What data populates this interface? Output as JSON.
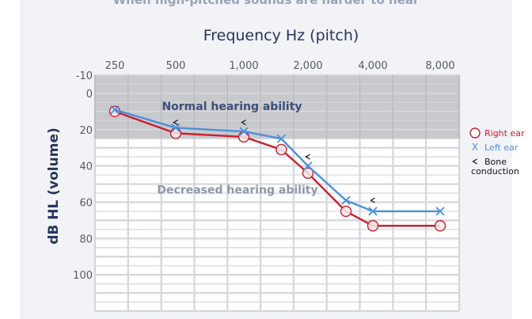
{
  "header": {
    "subtitle": "When high-pitched sounds are harder to hear"
  },
  "chart_data": {
    "type": "line",
    "title": "Frequency Hz (pitch)",
    "ylabel": "dB HL  (volume)",
    "x_ticks": [
      "250",
      "500",
      "1,000",
      "2,000",
      "4,000",
      "8,000"
    ],
    "y_ticks": [
      "-10",
      "0",
      "20",
      "40",
      "60",
      "80",
      "100"
    ],
    "ylim": [
      -10,
      120
    ],
    "y_reversed": true,
    "normal_range": [
      -10,
      25
    ],
    "regions": {
      "normal": "Normal hearing ability",
      "decreased": "Decreased hearing ability"
    },
    "series": [
      {
        "name": "Right ear",
        "marker": "circle",
        "color": "#c8202f",
        "points": [
          [
            250,
            10
          ],
          [
            500,
            22
          ],
          [
            1000,
            24
          ],
          [
            1500,
            31
          ],
          [
            2000,
            44
          ],
          [
            3000,
            65
          ],
          [
            4000,
            73
          ],
          [
            8000,
            73
          ]
        ]
      },
      {
        "name": "Left ear",
        "marker": "x",
        "color": "#4a90d9",
        "points": [
          [
            250,
            9
          ],
          [
            500,
            19
          ],
          [
            1000,
            21
          ],
          [
            1500,
            25
          ],
          [
            2000,
            40
          ],
          [
            3000,
            59
          ],
          [
            4000,
            65
          ],
          [
            8000,
            65
          ]
        ]
      },
      {
        "name": "Bone conduction",
        "marker": "<",
        "color": "#111111",
        "points": [
          [
            500,
            16
          ],
          [
            1000,
            16
          ],
          [
            2000,
            35
          ],
          [
            4000,
            59
          ]
        ]
      }
    ],
    "legend": {
      "position": "right",
      "items": [
        "Right ear",
        "Left ear",
        "Bone\nconduction"
      ]
    },
    "grid": true
  }
}
